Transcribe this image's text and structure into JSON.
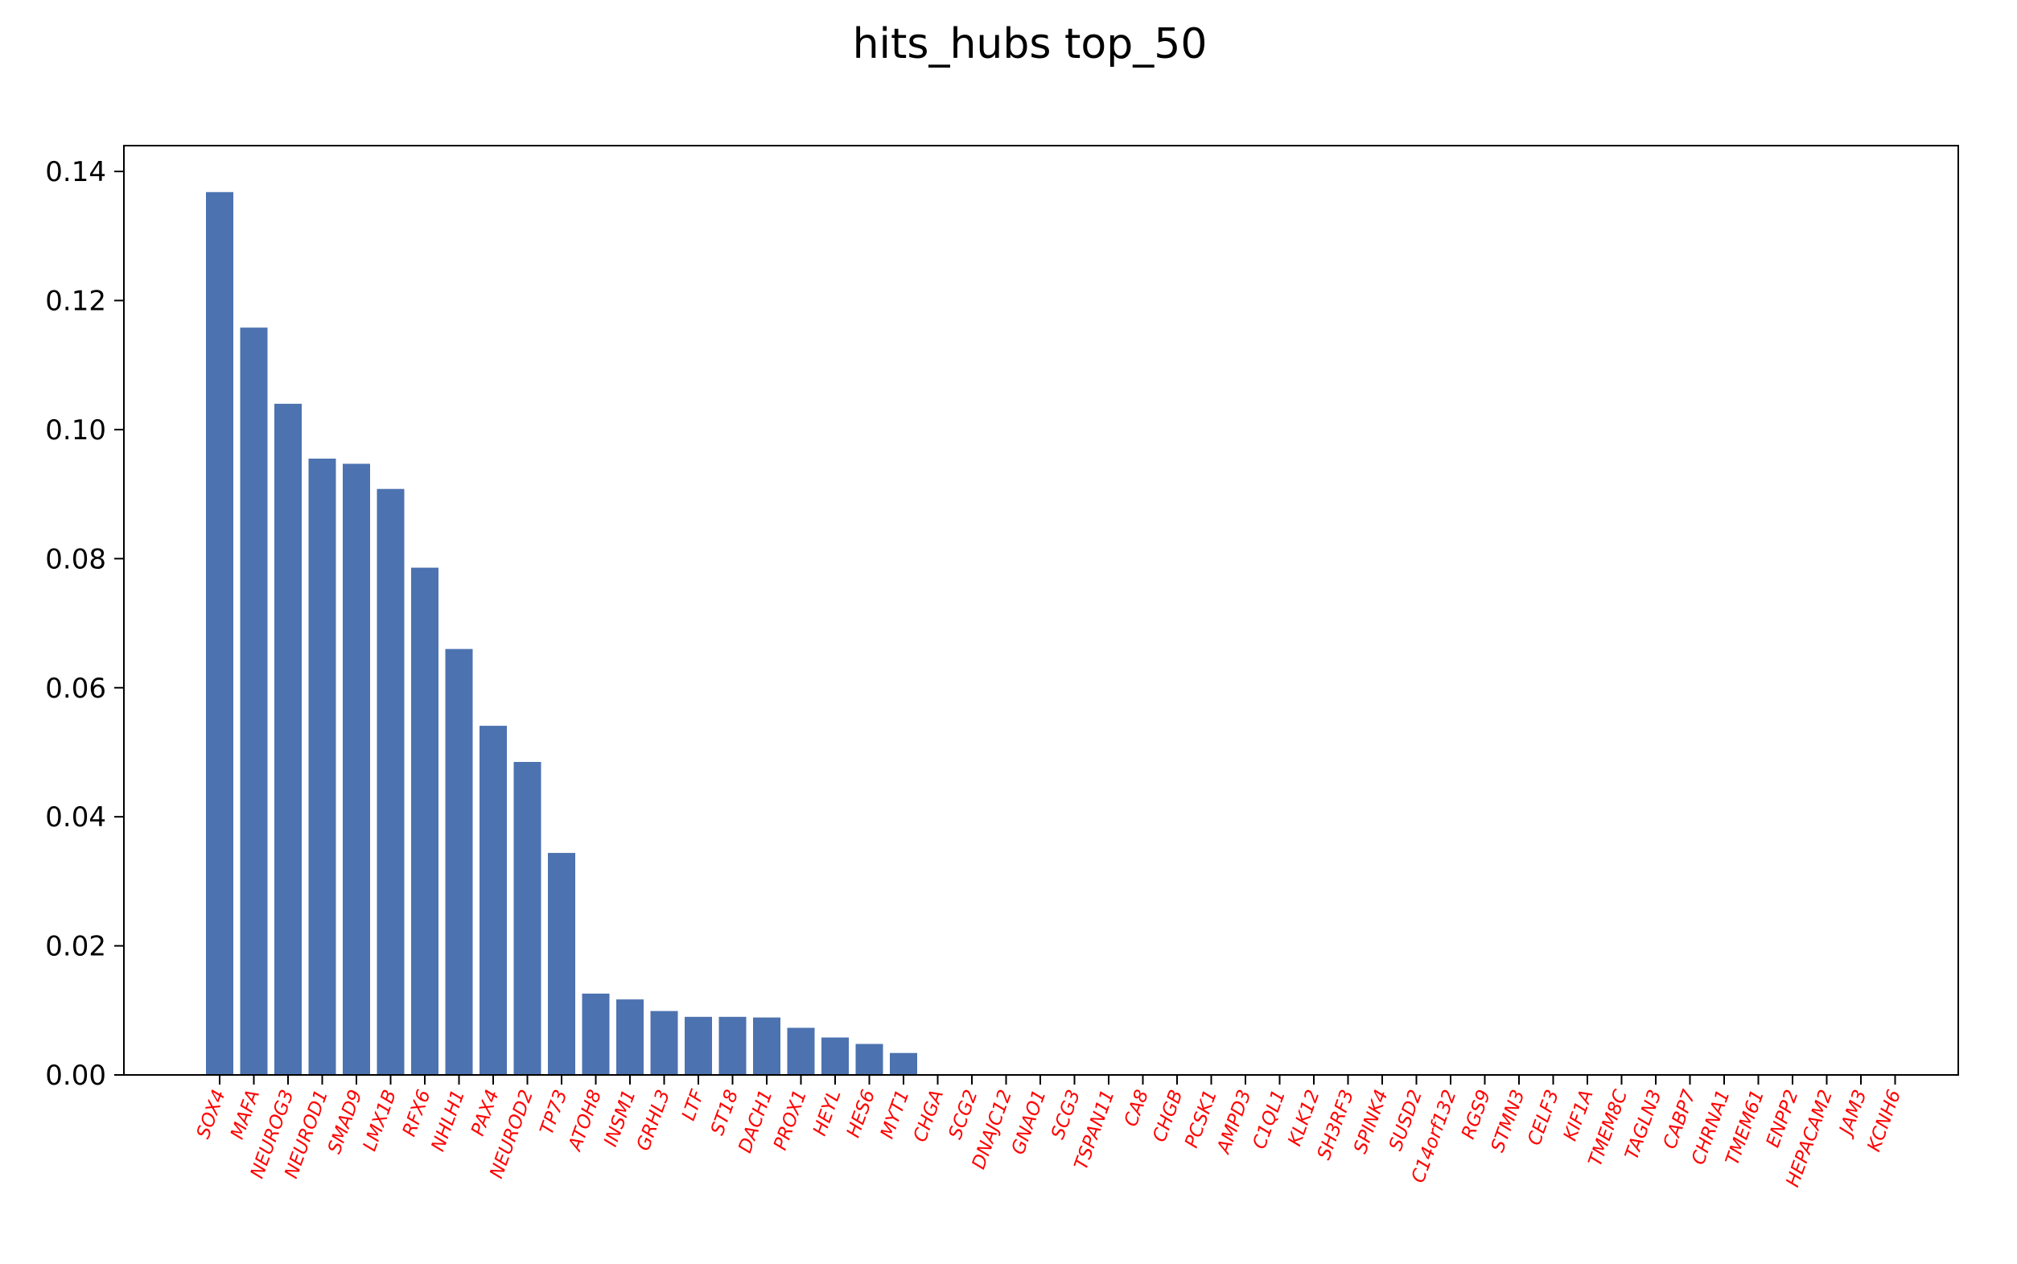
{
  "chart_data": {
    "type": "bar",
    "title": "hits_hubs top_50",
    "xlabel": "",
    "ylabel": "",
    "ylim": [
      0,
      0.144
    ],
    "yticks": [
      0.0,
      0.02,
      0.04,
      0.06,
      0.08,
      0.1,
      0.12,
      0.14
    ],
    "ytick_labels": [
      "0.00",
      "0.02",
      "0.04",
      "0.06",
      "0.08",
      "0.10",
      "0.12",
      "0.14"
    ],
    "grid": false,
    "bar_color": "#4c72b0",
    "tick_label_color": "#ff0000",
    "categories": [
      "SOX4",
      "MAFA",
      "NEUROG3",
      "NEUROD1",
      "SMAD9",
      "LMX1B",
      "RFX6",
      "NHLH1",
      "PAX4",
      "NEUROD2",
      "TP73",
      "ATOH8",
      "INSM1",
      "GRHL3",
      "LTF",
      "ST18",
      "DACH1",
      "PROX1",
      "HEYL",
      "HES6",
      "MYT1",
      "CHGA",
      "SCG2",
      "DNAJC12",
      "GNAO1",
      "SCG3",
      "TSPAN11",
      "CA8",
      "CHGB",
      "PCSK1",
      "AMPD3",
      "C1QL1",
      "KLK12",
      "SH3RF3",
      "SPINK4",
      "SUSD2",
      "C14orf132",
      "RGS9",
      "STMN3",
      "CELF3",
      "KIF1A",
      "TMEM8C",
      "TAGLN3",
      "CABP7",
      "CHRNA1",
      "TMEM61",
      "ENPP2",
      "HEPACAM2",
      "JAM3",
      "KCNH6"
    ],
    "values": [
      0.1368,
      0.1158,
      0.104,
      0.0955,
      0.0947,
      0.0908,
      0.0786,
      0.066,
      0.0541,
      0.0485,
      0.0344,
      0.0126,
      0.0117,
      0.0099,
      0.009,
      0.009,
      0.0089,
      0.0073,
      0.0058,
      0.0048,
      0.0034,
      0,
      0,
      0,
      0,
      0,
      0,
      0,
      0,
      0,
      0,
      0,
      0,
      0,
      0,
      0,
      0,
      0,
      0,
      0,
      0,
      0,
      0,
      0,
      0,
      0,
      0,
      0,
      0,
      0
    ]
  }
}
